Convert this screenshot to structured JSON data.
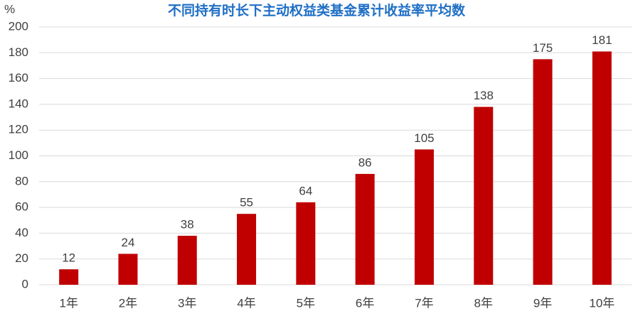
{
  "chart_data": {
    "type": "bar",
    "title": "不同持有时长下主动权益类基金累计收益率平均数",
    "y_label": "%",
    "categories": [
      "1年",
      "2年",
      "3年",
      "4年",
      "5年",
      "6年",
      "7年",
      "8年",
      "9年",
      "10年"
    ],
    "values": [
      12,
      24,
      38,
      55,
      64,
      86,
      105,
      138,
      175,
      181
    ],
    "color": "#c00000",
    "ylim": [
      0,
      200
    ],
    "yticks": [
      0,
      20,
      40,
      60,
      80,
      100,
      120,
      140,
      160,
      180,
      200
    ],
    "grid": true
  }
}
